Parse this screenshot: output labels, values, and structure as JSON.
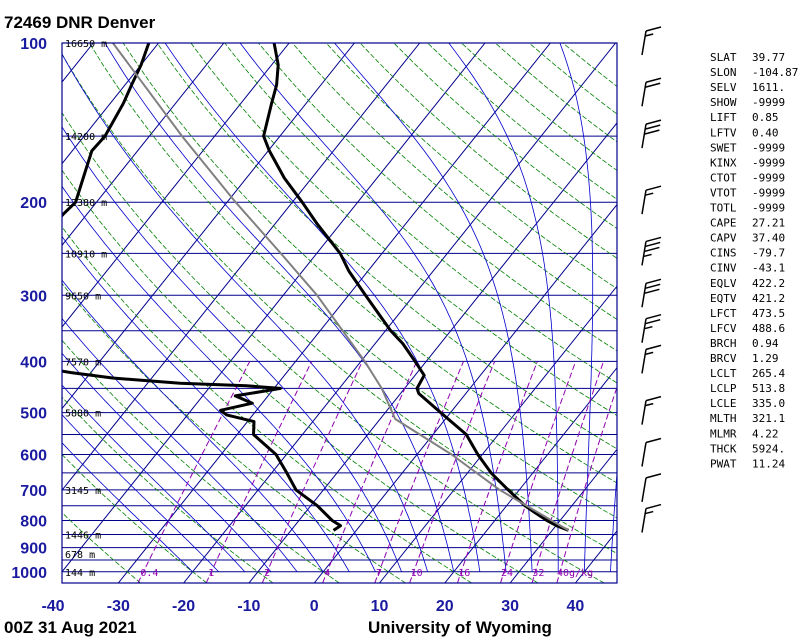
{
  "title": "72469 DNR Denver",
  "footer_left": "00Z 31 Aug 2021",
  "footer_right": "University of Wyoming",
  "chart_data": {
    "type": "line",
    "title": "72469 DNR Denver",
    "y_axis": {
      "kind": "log-pressure",
      "unit": "hPa",
      "range": [
        1050,
        100
      ],
      "ticks": [
        100,
        200,
        300,
        400,
        500,
        600,
        700,
        800,
        900,
        1000
      ]
    },
    "x_axis": {
      "kind": "skewed-temperature",
      "unit": "°C",
      "range": [
        -40,
        45
      ],
      "ticks": [
        -40,
        -30,
        -20,
        -10,
        0,
        10,
        20,
        30,
        40
      ]
    },
    "height_labels": [
      {
        "p": 100,
        "label": "16650 m"
      },
      {
        "p": 150,
        "label": "14200 m"
      },
      {
        "p": 200,
        "label": "12380 m"
      },
      {
        "p": 250,
        "label": "10910 m"
      },
      {
        "p": 300,
        "label": "9650 m"
      },
      {
        "p": 400,
        "label": "7570 m"
      },
      {
        "p": 500,
        "label": "5880 m"
      },
      {
        "p": 700,
        "label": "3145 m"
      },
      {
        "p": 850,
        "label": "1446 m"
      },
      {
        "p": 925,
        "label": "678 m"
      },
      {
        "p": 1000,
        "label": "144 m"
      }
    ],
    "mixing_ratio_labels": [
      {
        "w": 0.4,
        "label": "0.4"
      },
      {
        "w": 1,
        "label": "1"
      },
      {
        "w": 2,
        "label": "2"
      },
      {
        "w": 4,
        "label": "4"
      },
      {
        "w": 7,
        "label": "7"
      },
      {
        "w": 10,
        "label": "10"
      },
      {
        "w": 16,
        "label": "16"
      },
      {
        "w": 24,
        "label": "24"
      },
      {
        "w": 32,
        "label": "32"
      },
      {
        "w": 40,
        "label": "40g/kg"
      }
    ],
    "series": [
      {
        "role": "temperature",
        "color": "#000000",
        "points": [
          [
            835,
            32.5
          ],
          [
            818,
            30.1
          ],
          [
            800,
            28.0
          ],
          [
            775,
            25.4
          ],
          [
            750,
            22.8
          ],
          [
            700,
            18.3
          ],
          [
            650,
            13.6
          ],
          [
            600,
            9.3
          ],
          [
            550,
            5.1
          ],
          [
            500,
            -1.5
          ],
          [
            460,
            -7.2
          ],
          [
            450,
            -8.1
          ],
          [
            425,
            -8.6
          ],
          [
            400,
            -11.7
          ],
          [
            370,
            -15.8
          ],
          [
            350,
            -19.2
          ],
          [
            300,
            -27.4
          ],
          [
            270,
            -32.9
          ],
          [
            250,
            -36.4
          ],
          [
            220,
            -43.5
          ],
          [
            200,
            -48.5
          ],
          [
            180,
            -54.2
          ],
          [
            160,
            -59.8
          ],
          [
            150,
            -62.5
          ],
          [
            130,
            -65.3
          ],
          [
            120,
            -66.8
          ],
          [
            110,
            -69.0
          ],
          [
            100,
            -72.3
          ]
        ]
      },
      {
        "role": "dewpoint",
        "color": "#000000",
        "points": [
          [
            835,
            -3.5
          ],
          [
            818,
            -3.0
          ],
          [
            800,
            -4.9
          ],
          [
            750,
            -9.0
          ],
          [
            700,
            -14.2
          ],
          [
            650,
            -17.7
          ],
          [
            600,
            -21.6
          ],
          [
            550,
            -27.5
          ],
          [
            520,
            -29.0
          ],
          [
            505,
            -34.0
          ],
          [
            495,
            -35.5
          ],
          [
            480,
            -31.5
          ],
          [
            465,
            -35.0
          ],
          [
            450,
            -29.0
          ],
          [
            445,
            -34.5
          ],
          [
            440,
            -45.0
          ],
          [
            430,
            -56.0
          ],
          [
            420,
            -63.0
          ],
          [
            410,
            -69.0
          ],
          [
            400,
            -72.5
          ],
          [
            350,
            -74.5
          ],
          [
            300,
            -77.8
          ],
          [
            270,
            -81.0
          ],
          [
            250,
            -83.5
          ],
          [
            230,
            -84.0
          ],
          [
            210,
            -83.6
          ],
          [
            200,
            -83.2
          ],
          [
            180,
            -85.0
          ],
          [
            160,
            -87.0
          ],
          [
            150,
            -86.8
          ],
          [
            130,
            -88.0
          ],
          [
            120,
            -89.0
          ],
          [
            110,
            -90.0
          ],
          [
            100,
            -91.5
          ]
        ]
      },
      {
        "role": "parcel",
        "color": "#808080",
        "points": [
          [
            835,
            32.5
          ],
          [
            700,
            17.0
          ],
          [
            600,
            5.3
          ],
          [
            514,
            -7.7
          ],
          [
            450,
            -13.5
          ],
          [
            400,
            -19.4
          ],
          [
            300,
            -34.8
          ],
          [
            250,
            -45.5
          ],
          [
            200,
            -58.7
          ],
          [
            150,
            -75.0
          ],
          [
            100,
            -97.0
          ]
        ]
      }
    ],
    "wind_barbs": [
      {
        "p": 100,
        "speed_kt": 15
      },
      {
        "p": 125,
        "speed_kt": 20
      },
      {
        "p": 150,
        "speed_kt": 30
      },
      {
        "p": 200,
        "speed_kt": 15
      },
      {
        "p": 250,
        "speed_kt": 35
      },
      {
        "p": 300,
        "speed_kt": 30
      },
      {
        "p": 350,
        "speed_kt": 25
      },
      {
        "p": 400,
        "speed_kt": 15
      },
      {
        "p": 500,
        "speed_kt": 15
      },
      {
        "p": 600,
        "speed_kt": 10
      },
      {
        "p": 700,
        "speed_kt": 10
      },
      {
        "p": 800,
        "speed_kt": 15
      }
    ],
    "indices": [
      {
        "name": "SLAT",
        "value": "39.77"
      },
      {
        "name": "SLON",
        "value": "-104.87"
      },
      {
        "name": "SELV",
        "value": "1611."
      },
      {
        "name": "SHOW",
        "value": "-9999"
      },
      {
        "name": "LIFT",
        "value": "0.85"
      },
      {
        "name": "LFTV",
        "value": "0.40"
      },
      {
        "name": "SWET",
        "value": "-9999"
      },
      {
        "name": "KINX",
        "value": "-9999"
      },
      {
        "name": "CTOT",
        "value": "-9999"
      },
      {
        "name": "VTOT",
        "value": "-9999"
      },
      {
        "name": "TOTL",
        "value": "-9999"
      },
      {
        "name": "CAPE",
        "value": "27.21"
      },
      {
        "name": "CAPV",
        "value": "37.40"
      },
      {
        "name": "CINS",
        "value": "-79.7"
      },
      {
        "name": "CINV",
        "value": "-43.1"
      },
      {
        "name": "EQLV",
        "value": "422.2"
      },
      {
        "name": "EQTV",
        "value": "421.2"
      },
      {
        "name": "LFCT",
        "value": "473.5"
      },
      {
        "name": "LFCV",
        "value": "488.6"
      },
      {
        "name": "BRCH",
        "value": "0.94"
      },
      {
        "name": "BRCV",
        "value": "1.29"
      },
      {
        "name": "LCLT",
        "value": "265.4"
      },
      {
        "name": "LCLP",
        "value": "513.8"
      },
      {
        "name": "LCLE",
        "value": "335.0"
      },
      {
        "name": "MLTH",
        "value": "321.1"
      },
      {
        "name": "MLMR",
        "value": "4.22"
      },
      {
        "name": "THCK",
        "value": "5924."
      },
      {
        "name": "PWAT",
        "value": "11.24"
      }
    ],
    "colors": {
      "isobar": "#00008b",
      "isotherm": "#00008b",
      "dry_adiabat": "#008000",
      "moist_adiabat": "#0000cd",
      "mixing_ratio": "#9000b0",
      "temperature": "#000000",
      "dewpoint": "#000000",
      "parcel": "#808080",
      "axis_label": "#1a1aa0"
    }
  }
}
